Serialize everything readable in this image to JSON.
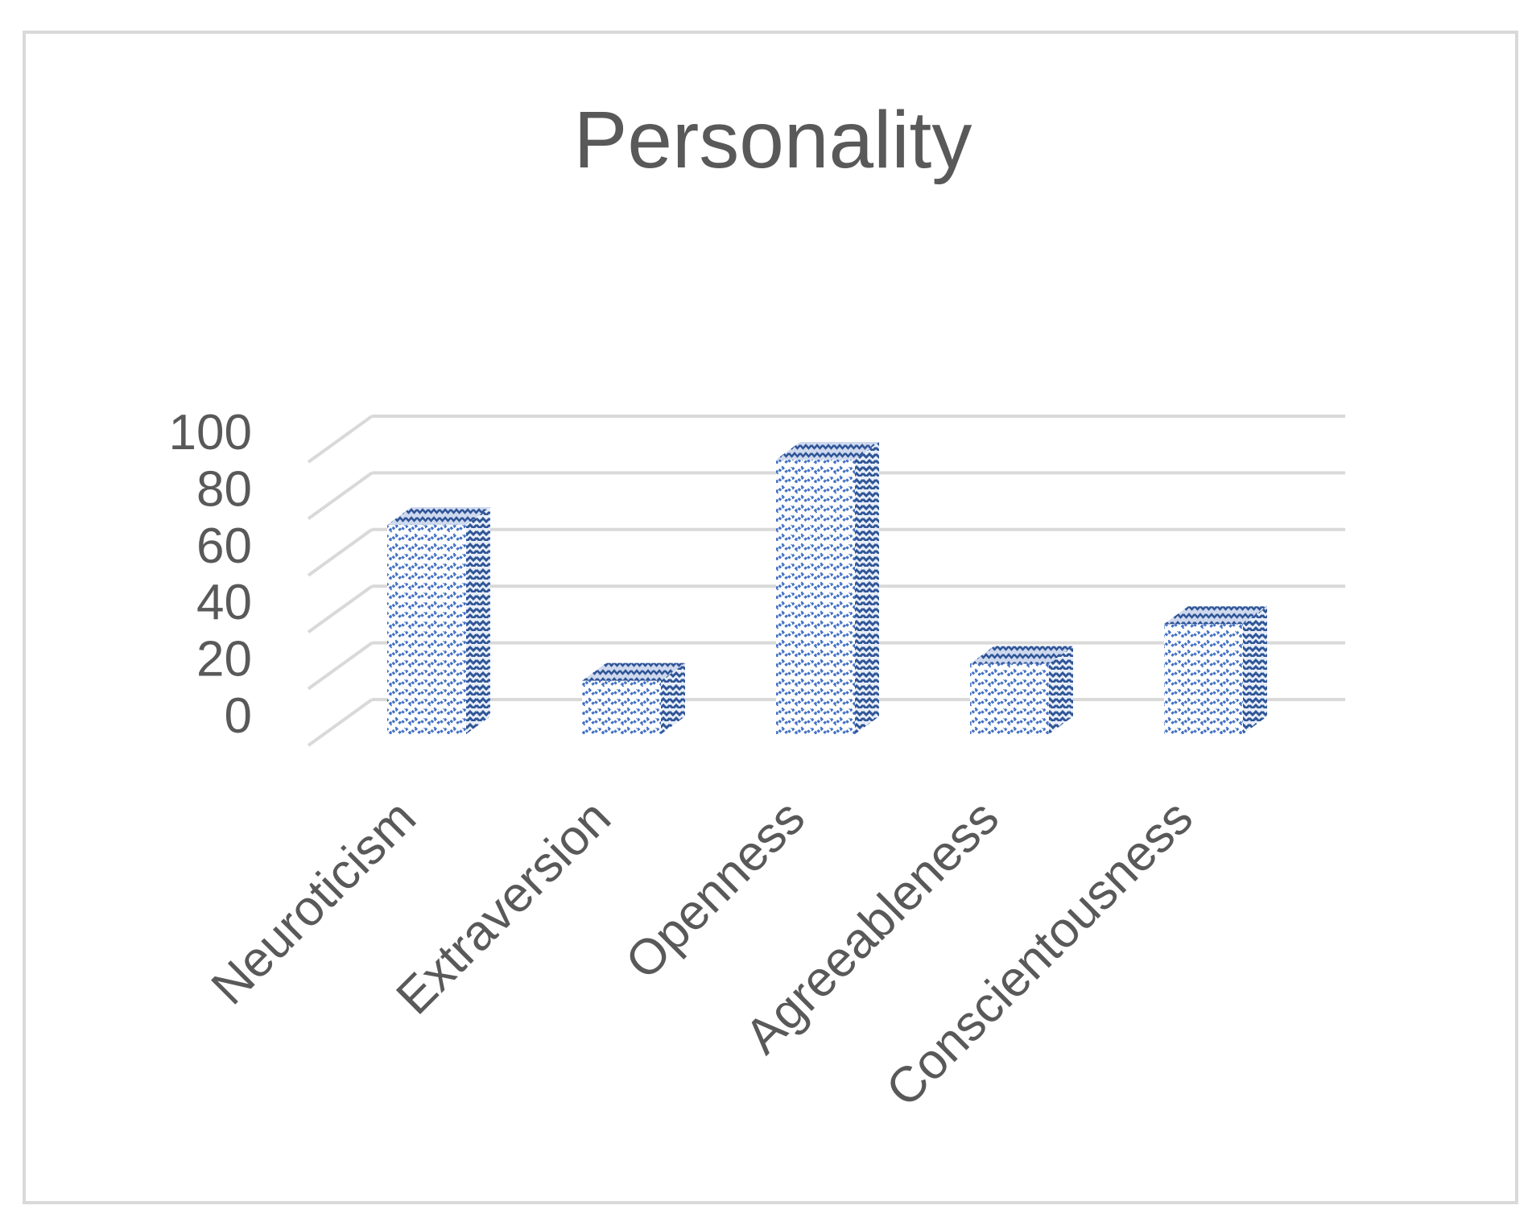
{
  "chart_data": {
    "type": "bar",
    "title": "Personality",
    "categories": [
      "Neuroticism",
      "Extraversion",
      "Openness",
      "Agreeableness",
      "Conscientousness"
    ],
    "values": [
      75,
      20,
      98,
      26,
      40
    ],
    "ylim": [
      0,
      100
    ],
    "yticks": [
      0,
      20,
      40,
      60,
      80,
      100
    ],
    "xlabel": "",
    "ylabel": "",
    "grid": true,
    "legend": "none",
    "style": "3d-column",
    "colors": {
      "bar_pattern": "#4472c4",
      "gridline": "#d9d9d9",
      "text": "#595959",
      "frame_border": "#d9d9d9"
    }
  }
}
